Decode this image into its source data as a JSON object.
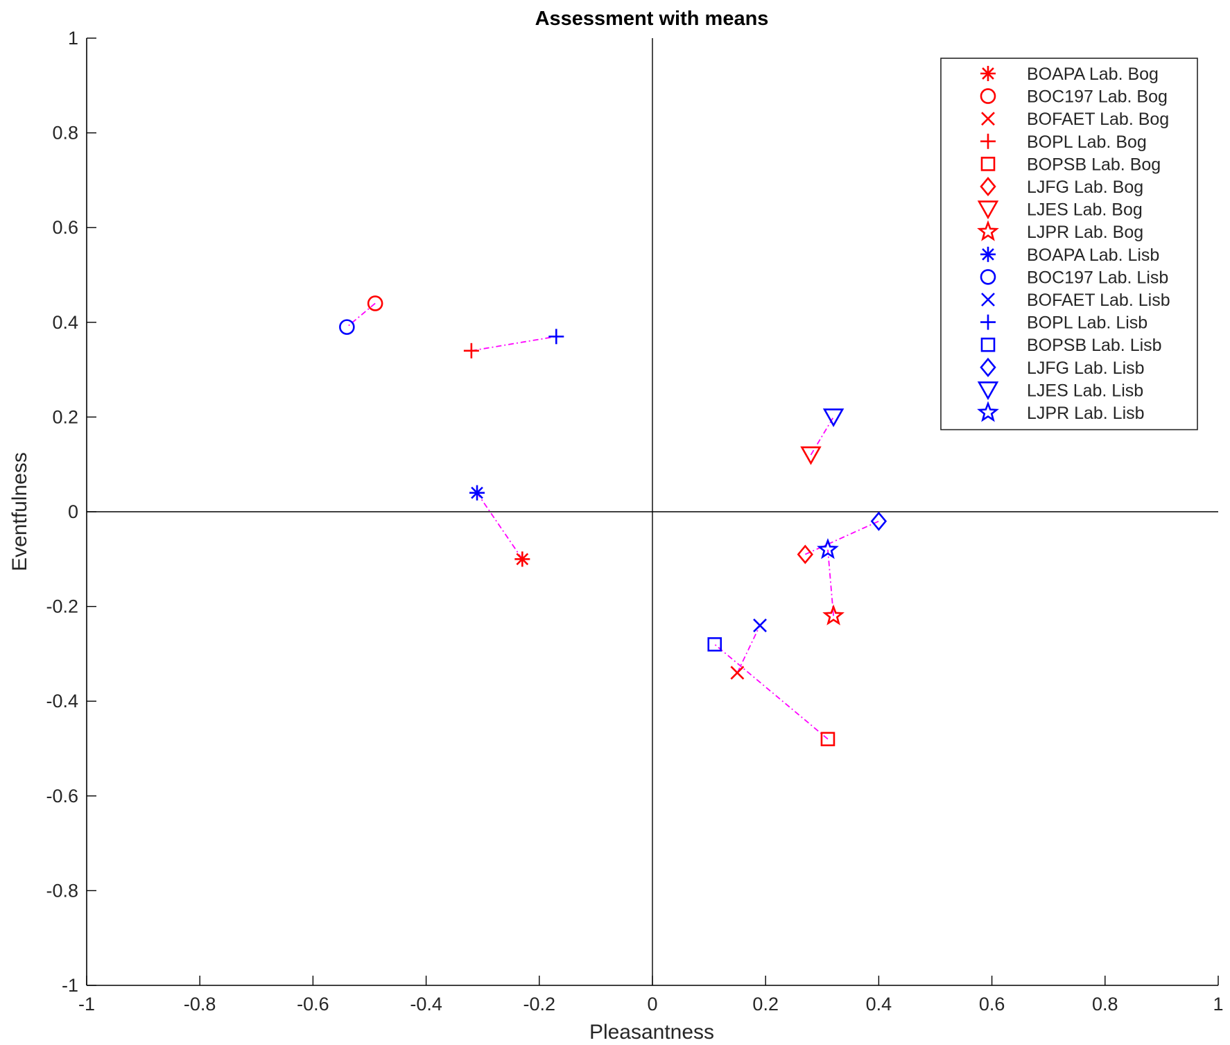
{
  "chart_data": {
    "type": "scatter",
    "title": "Assessment with means",
    "xlabel": "Pleasantness",
    "ylabel": "Eventfulness",
    "xlim": [
      -1,
      1
    ],
    "ylim": [
      -1,
      1
    ],
    "xticks": [
      -1,
      -0.8,
      -0.6,
      -0.4,
      -0.2,
      0,
      0.2,
      0.4,
      0.6,
      0.8,
      1
    ],
    "yticks": [
      -1,
      -0.8,
      -0.6,
      -0.4,
      -0.2,
      0,
      0.2,
      0.4,
      0.6,
      0.8,
      1
    ],
    "xtick_labels": [
      "-1",
      "-0.8",
      "-0.6",
      "-0.4",
      "-0.2",
      "0",
      "0.2",
      "0.4",
      "0.6",
      "0.8",
      "1"
    ],
    "ytick_labels": [
      "-1",
      "-0.8",
      "-0.6",
      "-0.4",
      "-0.2",
      "0",
      "0.2",
      "0.4",
      "0.6",
      "0.8",
      "1"
    ],
    "grid": false,
    "legend_position": "top-right",
    "colors": {
      "bog": "#ff0000",
      "lisb": "#0000ff",
      "link": "#ff00ff",
      "axis": "#000000",
      "text": "#262626"
    },
    "series": [
      {
        "name": "BOAPA Lab. Bog",
        "marker": "asterisk",
        "color": "#ff0000",
        "x": -0.23,
        "y": -0.1
      },
      {
        "name": "BOC197 Lab. Bog",
        "marker": "circle",
        "color": "#ff0000",
        "x": -0.49,
        "y": 0.44
      },
      {
        "name": "BOFAET Lab. Bog",
        "marker": "x",
        "color": "#ff0000",
        "x": 0.15,
        "y": -0.34
      },
      {
        "name": "BOPL Lab. Bog",
        "marker": "plus",
        "color": "#ff0000",
        "x": -0.32,
        "y": 0.34
      },
      {
        "name": "BOPSB Lab. Bog",
        "marker": "square",
        "color": "#ff0000",
        "x": 0.31,
        "y": -0.48
      },
      {
        "name": "LJFG Lab. Bog",
        "marker": "diamond",
        "color": "#ff0000",
        "x": 0.27,
        "y": -0.09
      },
      {
        "name": "LJES Lab. Bog",
        "marker": "triangle-down",
        "color": "#ff0000",
        "x": 0.28,
        "y": 0.12
      },
      {
        "name": "LJPR Lab. Bog",
        "marker": "star",
        "color": "#ff0000",
        "x": 0.32,
        "y": -0.22
      },
      {
        "name": "BOAPA Lab. Lisb",
        "marker": "asterisk",
        "color": "#0000ff",
        "x": -0.31,
        "y": 0.04
      },
      {
        "name": "BOC197 Lab. Lisb",
        "marker": "circle",
        "color": "#0000ff",
        "x": -0.54,
        "y": 0.39
      },
      {
        "name": "BOFAET Lab. Lisb",
        "marker": "x",
        "color": "#0000ff",
        "x": 0.19,
        "y": -0.24
      },
      {
        "name": "BOPL Lab. Lisb",
        "marker": "plus",
        "color": "#0000ff",
        "x": -0.17,
        "y": 0.37
      },
      {
        "name": "BOPSB Lab. Lisb",
        "marker": "square",
        "color": "#0000ff",
        "x": 0.11,
        "y": -0.28
      },
      {
        "name": "LJFG Lab. Lisb",
        "marker": "diamond",
        "color": "#0000ff",
        "x": 0.4,
        "y": -0.02
      },
      {
        "name": "LJES Lab. Lisb",
        "marker": "triangle-down",
        "color": "#0000ff",
        "x": 0.32,
        "y": 0.2
      },
      {
        "name": "LJPR Lab. Lisb",
        "marker": "star",
        "color": "#0000ff",
        "x": 0.31,
        "y": -0.08
      }
    ],
    "connections": [
      {
        "from": [
          -0.23,
          -0.1
        ],
        "to": [
          -0.31,
          0.04
        ]
      },
      {
        "from": [
          -0.49,
          0.44
        ],
        "to": [
          -0.54,
          0.39
        ]
      },
      {
        "from": [
          0.15,
          -0.34
        ],
        "to": [
          0.19,
          -0.24
        ]
      },
      {
        "from": [
          -0.32,
          0.34
        ],
        "to": [
          -0.17,
          0.37
        ]
      },
      {
        "from": [
          0.31,
          -0.48
        ],
        "to": [
          0.11,
          -0.28
        ]
      },
      {
        "from": [
          0.27,
          -0.09
        ],
        "to": [
          0.4,
          -0.02
        ]
      },
      {
        "from": [
          0.28,
          0.12
        ],
        "to": [
          0.32,
          0.2
        ]
      },
      {
        "from": [
          0.32,
          -0.22
        ],
        "to": [
          0.31,
          -0.08
        ]
      }
    ]
  }
}
